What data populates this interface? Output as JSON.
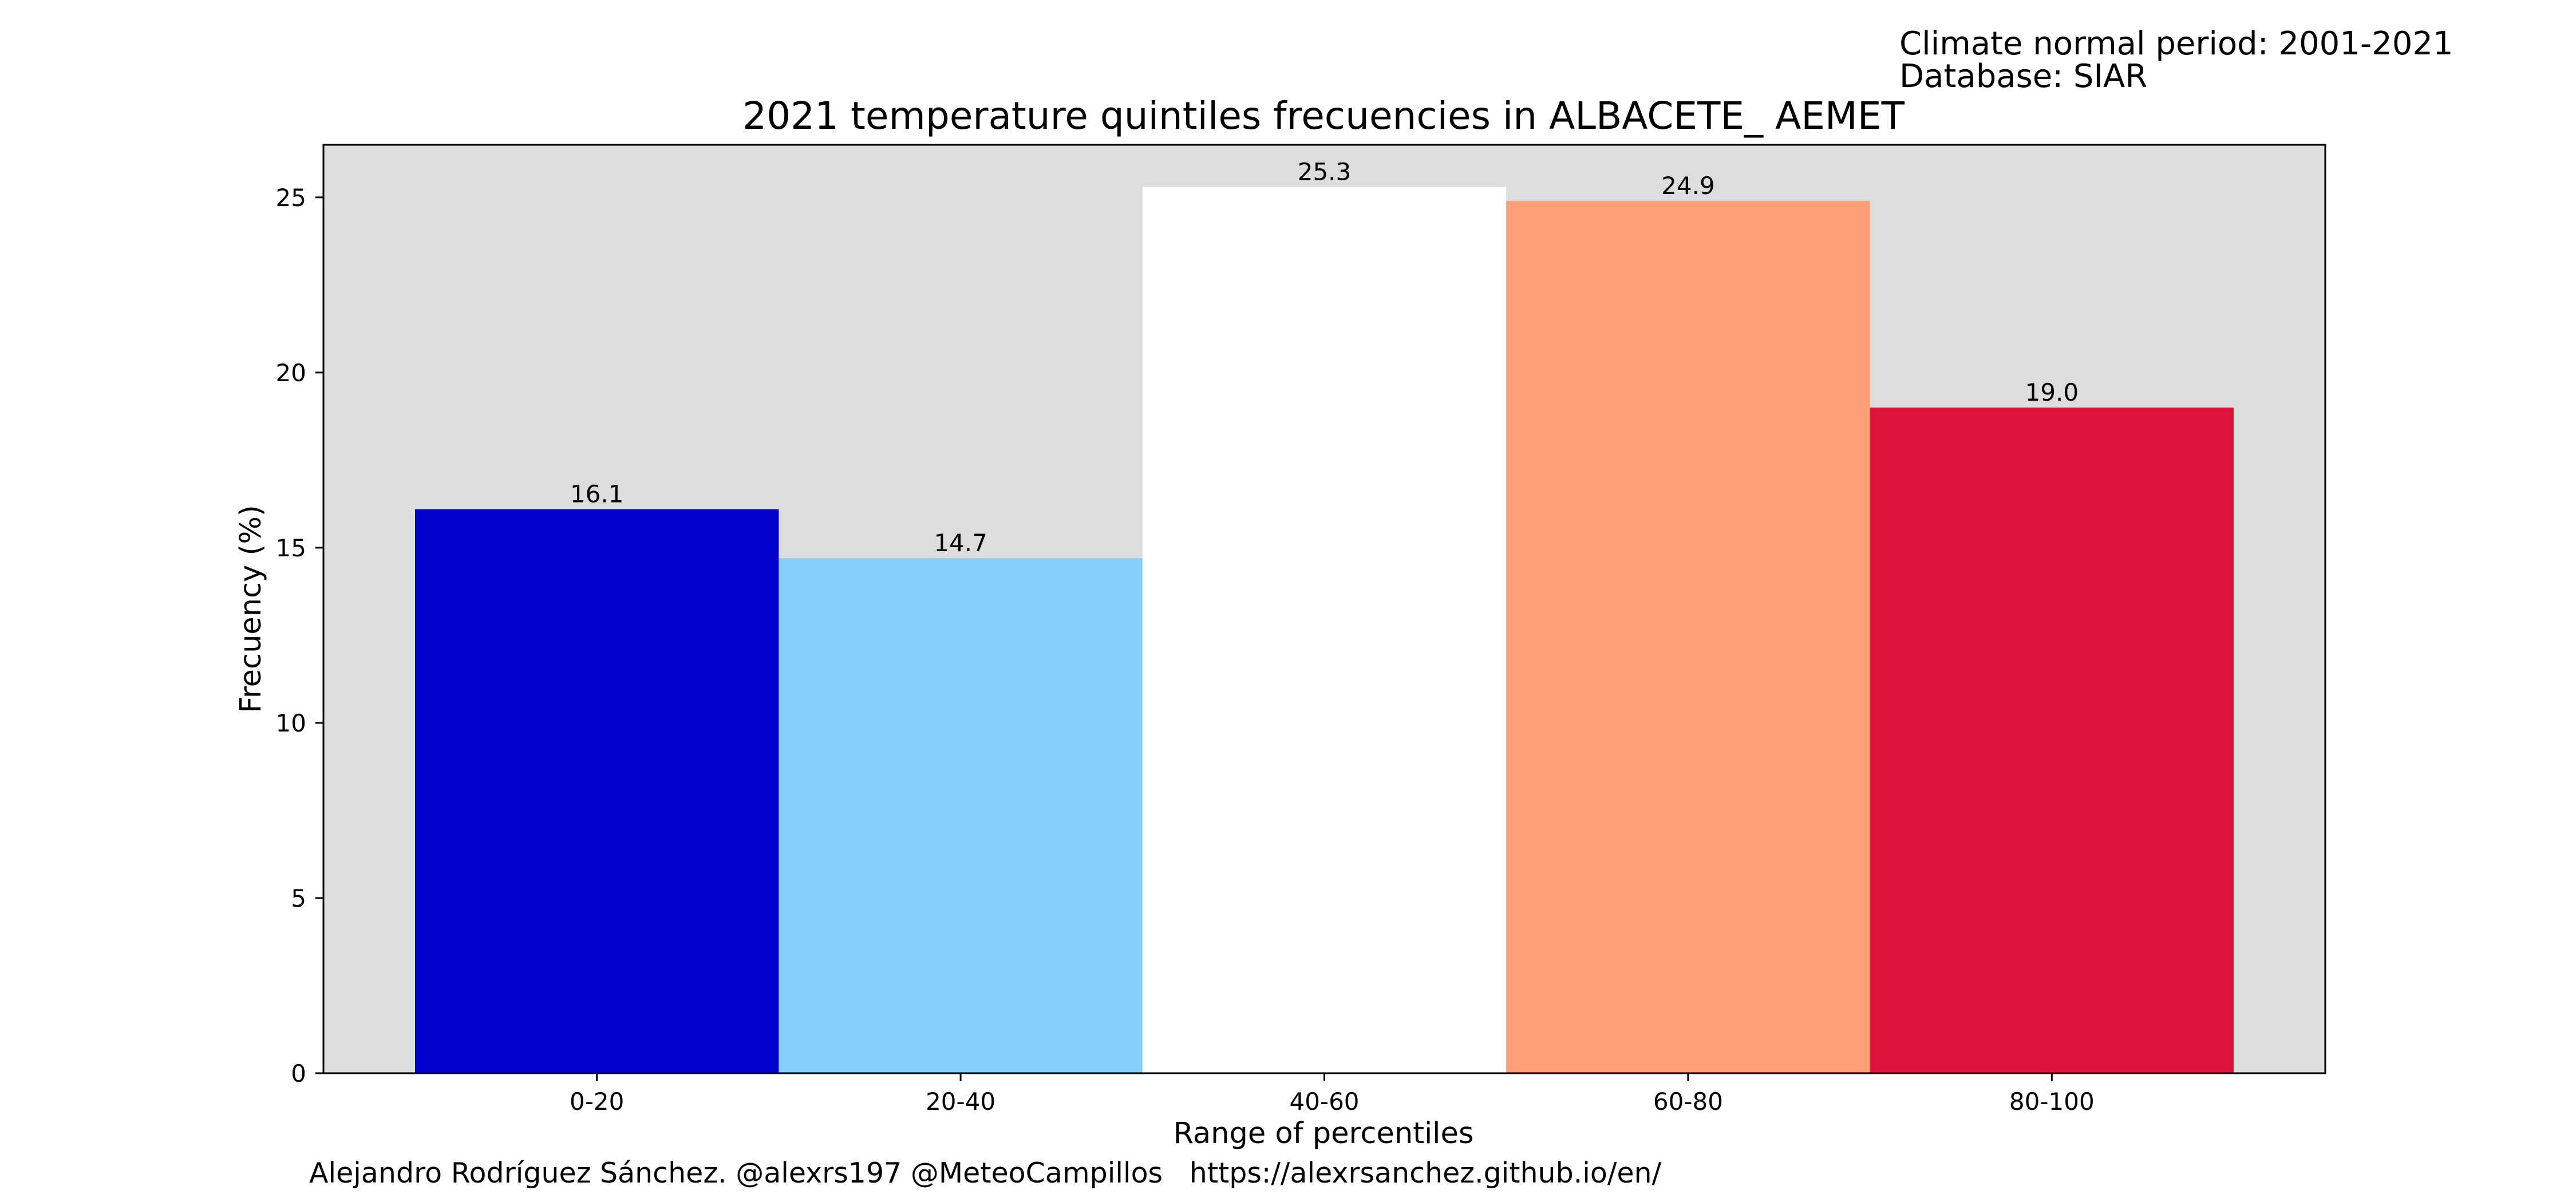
{
  "chart_data": {
    "type": "bar",
    "title": "2021 temperature quintiles frecuencies in ALBACETE_ AEMET",
    "xlabel": "Range of percentiles",
    "ylabel": "Frecuency (%)",
    "categories": [
      "0-20",
      "20-40",
      "40-60",
      "60-80",
      "80-100"
    ],
    "values": [
      16.1,
      14.7,
      25.3,
      24.9,
      19.0
    ],
    "value_labels": [
      "16.1",
      "14.7",
      "25.3",
      "24.9",
      "19.0"
    ],
    "colors": [
      "#0000cd",
      "#87cefa",
      "#ffffff",
      "#ffa07a",
      "#dc143c"
    ],
    "ylim": [
      0,
      26.5
    ],
    "yticks": [
      0,
      5,
      10,
      15,
      20,
      25
    ],
    "grid": false,
    "legend": "none",
    "plot_background": "#dddddd"
  },
  "info": {
    "period": "Climate normal period: 2001-2021",
    "database": "Database: SIAR"
  },
  "credit": "Alejandro Rodríguez Sánchez. @alexrs197 @MeteoCampillos   https://alexrsanchez.github.io/en/"
}
